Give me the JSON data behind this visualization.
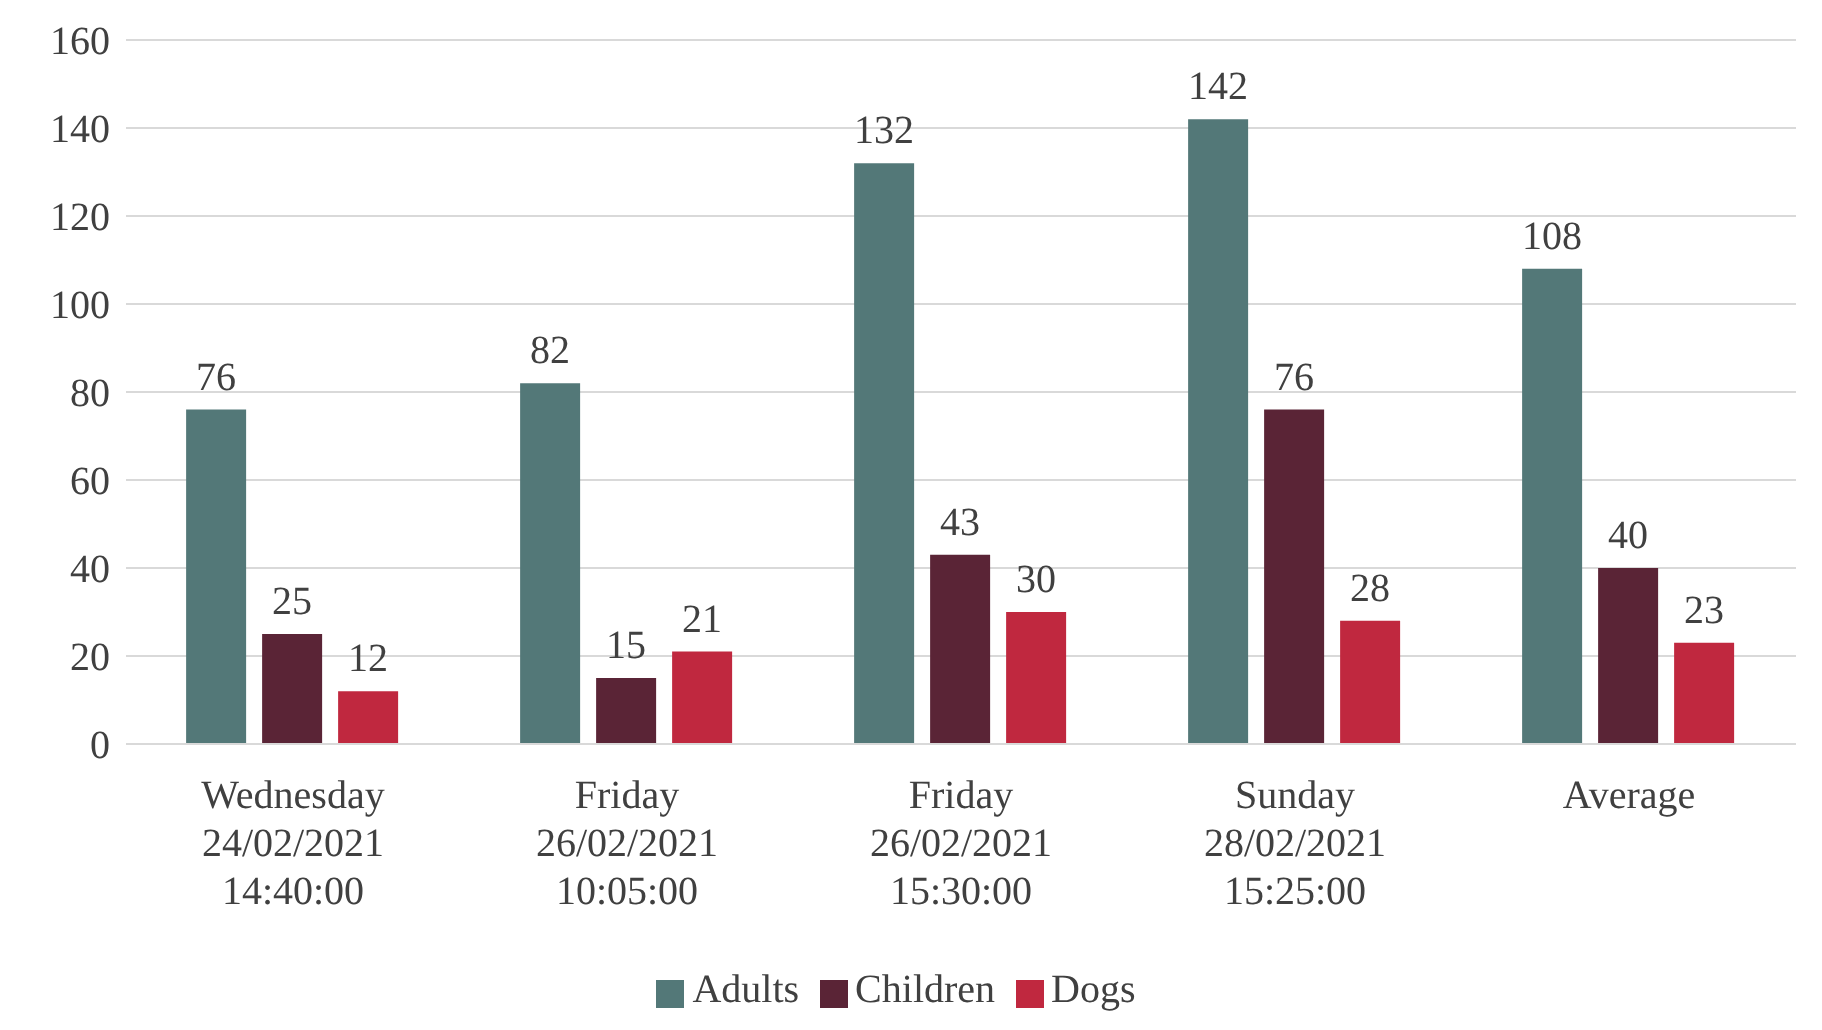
{
  "chart_data": {
    "type": "bar",
    "categories": [
      "Wednesday\n24/02/2021\n14:40:00",
      "Friday\n26/02/2021\n10:05:00",
      "Friday\n26/02/2021\n15:30:00",
      "Sunday\n28/02/2021\n15:25:00",
      "Average"
    ],
    "series": [
      {
        "name": "Adults",
        "color": "#537878",
        "values": [
          76,
          82,
          132,
          142,
          108
        ]
      },
      {
        "name": "Children",
        "color": "#5a2436",
        "values": [
          25,
          15,
          43,
          76,
          40
        ]
      },
      {
        "name": "Dogs",
        "color": "#c0283f",
        "values": [
          12,
          21,
          30,
          28,
          23
        ]
      }
    ],
    "ylim": [
      0,
      160
    ],
    "yticks": [
      0,
      20,
      40,
      60,
      80,
      100,
      120,
      140,
      160
    ],
    "grid": "y",
    "legend": "bottom",
    "data_labels": true
  }
}
